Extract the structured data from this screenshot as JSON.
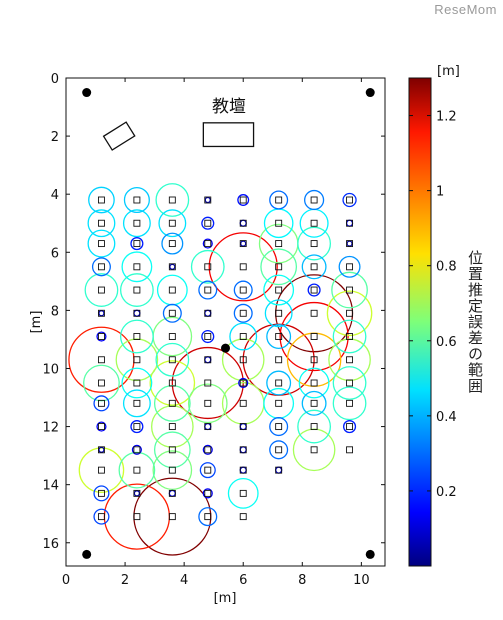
{
  "watermark": "ReseMom",
  "chart_data": {
    "type": "scatter",
    "xlabel": "[m]",
    "ylabel": "[m]",
    "xlim": [
      0,
      10.8
    ],
    "ylim": [
      0,
      16.8
    ],
    "y_inverted": true,
    "x_ticks": [
      0,
      2,
      4,
      6,
      8,
      10
    ],
    "y_ticks": [
      0,
      2,
      4,
      6,
      8,
      10,
      12,
      14,
      16
    ],
    "grid": false,
    "room_label": "教壇",
    "colorbar": {
      "unit": "[m]",
      "title": "位置推定誤差の範囲",
      "range": [
        0,
        1.3
      ],
      "ticks": [
        0.2,
        0.4,
        0.6,
        0.8,
        1,
        1.2
      ],
      "colormap": "jet"
    },
    "reference_points": [
      {
        "x": 0.7,
        "y": 0.5
      },
      {
        "x": 10.3,
        "y": 0.5
      },
      {
        "x": 0.7,
        "y": 16.4
      },
      {
        "x": 10.3,
        "y": 16.4
      },
      {
        "x": 5.4,
        "y": 9.3
      }
    ],
    "objects": [
      {
        "label": "teacher_desk",
        "x": 5.5,
        "y": 1.95,
        "w": 1.7,
        "h": 0.8,
        "angle": 0
      },
      {
        "label": "desk_tilted",
        "x": 1.8,
        "y": 2.0,
        "w": 0.9,
        "h": 0.55,
        "angle": -32
      }
    ],
    "columns_x": [
      1.2,
      2.4,
      3.6,
      4.8,
      6.0,
      7.2,
      8.4,
      9.6
    ],
    "rows_y": [
      4.2,
      5.0,
      5.7,
      6.5,
      7.3,
      8.1,
      8.9,
      9.7,
      10.5,
      11.2,
      12.0,
      12.8,
      13.5,
      14.3,
      15.1
    ],
    "errors": [
      [
        0.43,
        0.42,
        0.55,
        0.05,
        0.18,
        0.3,
        0.32,
        0.22
      ],
      [
        0.45,
        0.45,
        0.45,
        0.2,
        0.1,
        0.48,
        0.47,
        0.1
      ],
      [
        0.45,
        0.2,
        0.35,
        0.15,
        0.05,
        0.65,
        0.55,
        0.02
      ],
      [
        0.3,
        0.5,
        0.05,
        0.55,
        1.15,
        0.6,
        0.4,
        0.35
      ],
      [
        0.55,
        0.55,
        0.5,
        0.3,
        0.3,
        0.5,
        0.2,
        0.6
      ],
      [
        0.05,
        0.1,
        0.3,
        0.1,
        0.3,
        0.45,
        1.3,
        0.75
      ],
      [
        0.15,
        0.55,
        0.65,
        0.2,
        0.45,
        0.4,
        1.15,
        0.55
      ],
      [
        1.1,
        0.7,
        0.55,
        0.1,
        0.7,
        1.2,
        0.9,
        0.7
      ],
      [
        0.6,
        0.5,
        0.75,
        1.2,
        0.15,
        0.4,
        0.5,
        0.55
      ],
      [
        0.25,
        0.45,
        0.6,
        0.65,
        0.7,
        0.5,
        0.4,
        0.55
      ],
      [
        0.15,
        0.2,
        0.7,
        0.1,
        0.1,
        0.3,
        0.55,
        0.2
      ],
      [
        0.05,
        0.15,
        0.6,
        0.15,
        0.1,
        0.3,
        0.7,
        0.0
      ],
      [
        0.75,
        0.6,
        0.65,
        0.25,
        0.1,
        0.1,
        0.0,
        0.0
      ],
      [
        0.25,
        0.05,
        0.1,
        0.15,
        0.5,
        0.0,
        0.0,
        0.0
      ],
      [
        0.25,
        1.1,
        1.3,
        0.3,
        0.0,
        0.0,
        0.0,
        0.0
      ]
    ]
  }
}
